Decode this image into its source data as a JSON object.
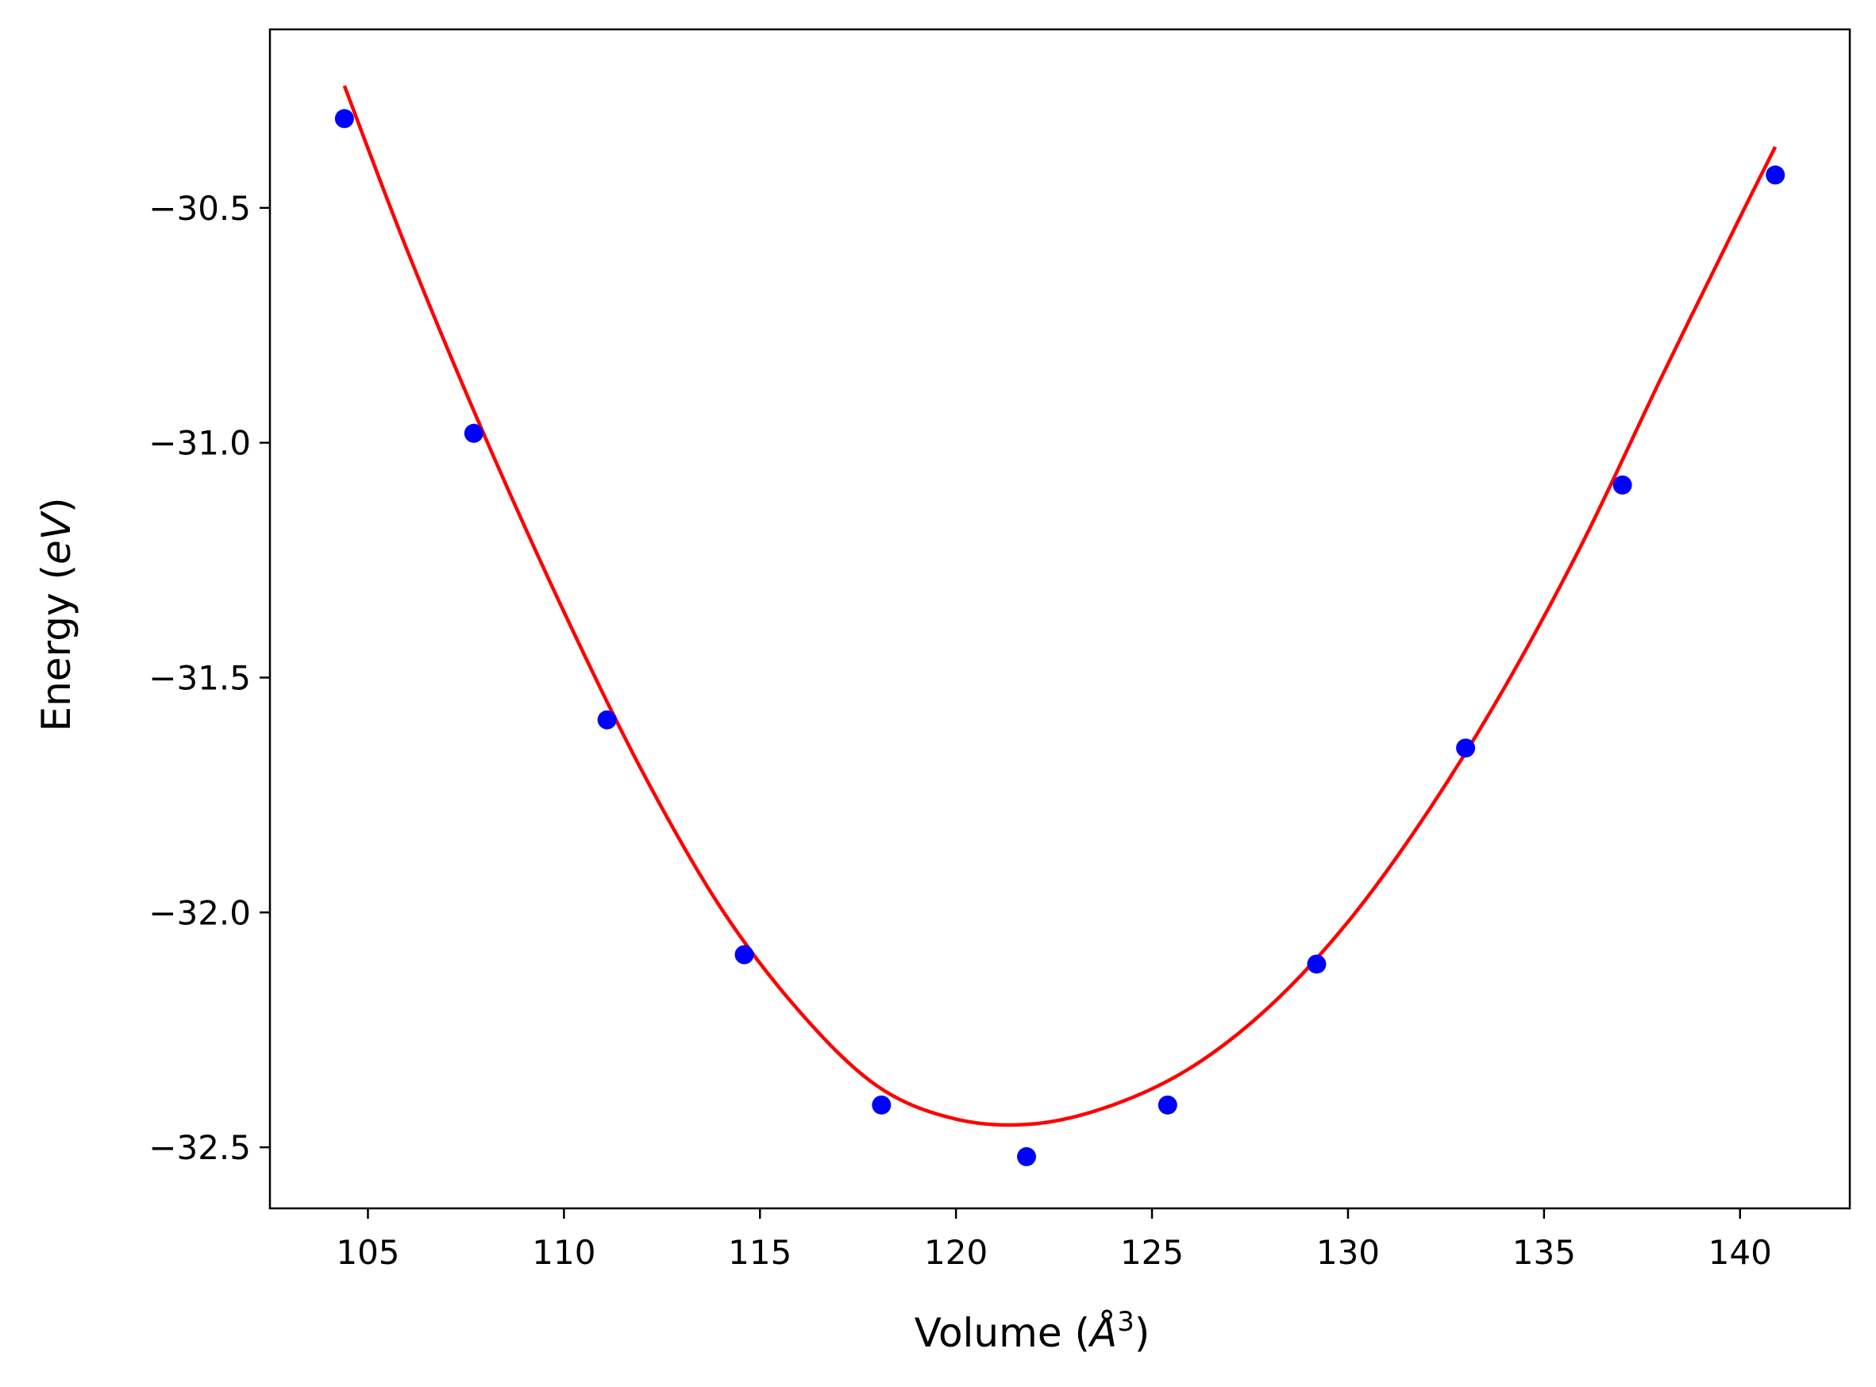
{
  "chart_data": {
    "type": "scatter",
    "xlabel": {
      "prefix": "Volume (",
      "symbol": "Å",
      "superscript": "3",
      "suffix": ")"
    },
    "ylabel": {
      "prefix": "Energy (",
      "symbol": "eV",
      "suffix": ")"
    },
    "xlim": [
      102.5,
      142.8
    ],
    "ylim": [
      -32.63,
      -30.12
    ],
    "xticks": [
      105,
      110,
      115,
      120,
      125,
      130,
      135,
      140
    ],
    "xtick_labels": [
      "105",
      "110",
      "115",
      "120",
      "125",
      "130",
      "135",
      "140"
    ],
    "yticks": [
      -30.5,
      -31.0,
      -31.5,
      -32.0,
      -32.5
    ],
    "ytick_labels": [
      "−30.5",
      "−31.0",
      "−31.5",
      "−32.0",
      "−32.5"
    ],
    "grid": false,
    "series": [
      {
        "kind": "points",
        "color": "#0000ff",
        "x": [
          104.4,
          107.7,
          111.1,
          114.6,
          118.1,
          121.8,
          125.4,
          129.2,
          133.0,
          137.0,
          140.9
        ],
        "y": [
          -30.31,
          -30.98,
          -31.59,
          -32.09,
          -32.41,
          -32.52,
          -32.41,
          -32.11,
          -31.65,
          -31.09,
          -30.43
        ]
      },
      {
        "kind": "fit-curve",
        "color": "#ff0000",
        "x": [
          104.4,
          106.0,
          108.0,
          110.0,
          112.0,
          114.0,
          116.0,
          118.0,
          120.0,
          122.0,
          124.0,
          126.0,
          128.0,
          130.0,
          132.0,
          134.0,
          136.0,
          138.0,
          140.0,
          140.9
        ],
        "y": [
          -30.24,
          -30.59,
          -30.99,
          -31.36,
          -31.7,
          -31.99,
          -32.21,
          -32.37,
          -32.44,
          -32.45,
          -32.41,
          -32.33,
          -32.2,
          -32.02,
          -31.79,
          -31.52,
          -31.21,
          -30.86,
          -30.52,
          -30.37
        ]
      }
    ]
  }
}
